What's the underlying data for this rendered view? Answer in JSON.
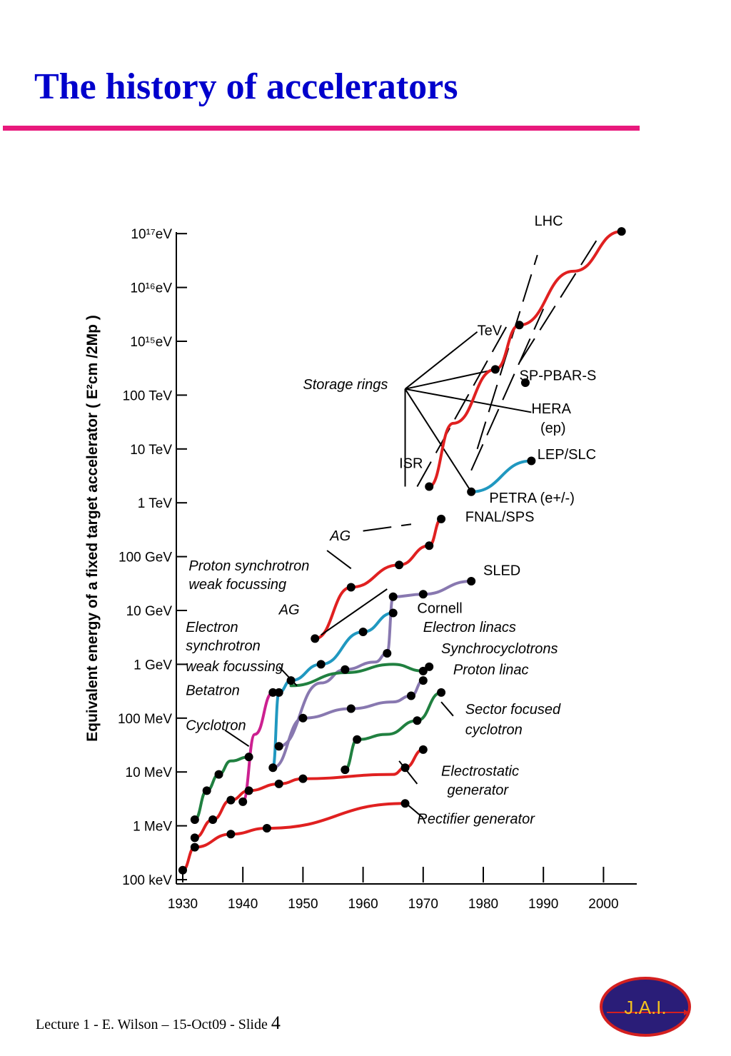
{
  "slide": {
    "title": "The history of accelerators",
    "footer_text": "Lecture 1 - E. Wilson – 15-Oct09 - Slide ",
    "slide_number": "4",
    "logo_text": "J.A.I.",
    "accent_color": "#e8197c",
    "title_color": "#0000cc"
  },
  "chart_data": {
    "type": "line",
    "title": "",
    "ylabel": "Equivalent energy of a fixed target accelerator ( E²cm /2Mp )",
    "xlabel": "",
    "x_ticks": [
      "1930",
      "1940",
      "1950",
      "1960",
      "1970",
      "1980",
      "1990",
      "2000"
    ],
    "xlim": [
      1930,
      2005
    ],
    "y_scale": "log",
    "y_ticks": [
      {
        "label": "100 keV",
        "value": 100000.0
      },
      {
        "label": "1 MeV",
        "value": 1000000.0
      },
      {
        "label": "10 MeV",
        "value": 10000000.0
      },
      {
        "label": "100 MeV",
        "value": 100000000.0
      },
      {
        "label": "1 GeV",
        "value": 1000000000.0
      },
      {
        "label": "10 GeV",
        "value": 10000000000.0
      },
      {
        "label": "100 GeV",
        "value": 100000000000.0
      },
      {
        "label": "1 TeV",
        "value": 1000000000000.0
      },
      {
        "label": "10 TeV",
        "value": 10000000000000.0
      },
      {
        "label": "100 TeV",
        "value": 100000000000000.0
      },
      {
        "label": "10¹⁵eV",
        "value": 1000000000000000.0
      },
      {
        "label": "10¹⁶eV",
        "value": 1e+16
      },
      {
        "label": "10¹⁷eV",
        "value": 1e+17
      }
    ],
    "ylim": [
      100000.0,
      2e+17
    ],
    "grid": false,
    "series": [
      {
        "name": "Rectifier generator",
        "color": "#e02020",
        "points": [
          [
            1930,
            150000.0
          ],
          [
            1932,
            400000.0
          ],
          [
            1938,
            700000.0
          ],
          [
            1944,
            900000.0
          ],
          [
            1967,
            2600000.0
          ]
        ]
      },
      {
        "name": "Electrostatic generator",
        "color": "#e02020",
        "points": [
          [
            1932,
            600000.0
          ],
          [
            1935,
            1300000.0
          ],
          [
            1938,
            3000000.0
          ],
          [
            1941,
            4500000.0
          ],
          [
            1946,
            6000000.0
          ],
          [
            1950,
            7500000.0
          ],
          [
            1965,
            9000000.0
          ],
          [
            1967,
            12000000.0
          ],
          [
            1970,
            26000000.0
          ]
        ]
      },
      {
        "name": "Cyclotron",
        "color": "#208040",
        "points": [
          [
            1932,
            1300000.0
          ],
          [
            1934,
            4500000.0
          ],
          [
            1936,
            9000000.0
          ],
          [
            1938,
            16000000.0
          ],
          [
            1941,
            19000000.0
          ]
        ]
      },
      {
        "name": "Betatron",
        "color": "#cc2090",
        "points": [
          [
            1940,
            2800000.0
          ],
          [
            1942,
            50000000.0
          ],
          [
            1945,
            300000000.0
          ]
        ]
      },
      {
        "name": "Electron synchrotron",
        "color": "#2098c0",
        "points": [
          [
            1945,
            12000000.0
          ],
          [
            1946,
            300000000.0
          ],
          [
            1948,
            500000000.0
          ],
          [
            1953,
            1000000000.0
          ],
          [
            1960,
            4000000000.0
          ],
          [
            1965,
            9000000000.0
          ]
        ]
      },
      {
        "name": "Electron linacs",
        "color": "#8878b0",
        "points": [
          [
            1945,
            12000000.0
          ],
          [
            1950,
            100000000.0
          ],
          [
            1958,
            150000000.0
          ],
          [
            1965,
            200000000.0
          ],
          [
            1968,
            260000000.0
          ],
          [
            1970,
            500000000.0
          ]
        ]
      },
      {
        "name": "Synchrocyclotrons",
        "color": "#8878b0",
        "points": [
          [
            1946,
            30000000.0
          ],
          [
            1953,
            450000000.0
          ],
          [
            1957,
            800000000.0
          ],
          [
            1962,
            1100000000.0
          ],
          [
            1964,
            1600000000.0
          ],
          [
            1965,
            18000000000.0
          ],
          [
            1970,
            20000000000.0
          ],
          [
            1978,
            35000000000.0
          ]
        ]
      },
      {
        "name": "Proton linac",
        "color": "#208040",
        "points": [
          [
            1948,
            400000000.0
          ],
          [
            1957,
            700000000.0
          ],
          [
            1965,
            1000000000.0
          ],
          [
            1970,
            750000000.0
          ],
          [
            1971,
            900000000.0
          ]
        ]
      },
      {
        "name": "Sector focused cyclotron",
        "color": "#208040",
        "points": [
          [
            1957,
            11000000.0
          ],
          [
            1959,
            40000000.0
          ],
          [
            1964,
            50000000.0
          ],
          [
            1969,
            90000000.0
          ],
          [
            1973,
            300000000.0
          ]
        ]
      },
      {
        "name": "Proton synchrotron",
        "color": "#e02020",
        "points": [
          [
            1952,
            3000000000.0
          ],
          [
            1958,
            27000000000.0
          ],
          [
            1966,
            70000000000.0
          ],
          [
            1971,
            160000000000.0
          ],
          [
            1973,
            500000000000.0
          ]
        ]
      },
      {
        "name": "ISR to LHC",
        "color": "#e02020",
        "points": [
          [
            1971,
            2000000000000.0
          ],
          [
            1975,
            30000000000000.0
          ],
          [
            1982,
            300000000000000.0
          ],
          [
            1986,
            2000000000000000.0
          ],
          [
            1995,
            2e+16
          ],
          [
            2003,
            1.1e+17
          ]
        ]
      },
      {
        "name": "PETRA to LEP/SLC",
        "color": "#2098c0",
        "points": [
          [
            1978,
            1600000000000.0
          ],
          [
            1988,
            6000000000000.0
          ]
        ]
      }
    ],
    "markers": [
      [
        1930,
        150000.0
      ],
      [
        1932,
        400000.0
      ],
      [
        1938,
        700000.0
      ],
      [
        1944,
        900000.0
      ],
      [
        1967,
        2600000.0
      ],
      [
        1932,
        600000.0
      ],
      [
        1935,
        1300000.0
      ],
      [
        1938,
        3000000.0
      ],
      [
        1941,
        4500000.0
      ],
      [
        1946,
        6000000.0
      ],
      [
        1950,
        7500000.0
      ],
      [
        1967,
        12000000.0
      ],
      [
        1970,
        26000000.0
      ],
      [
        1932,
        1300000.0
      ],
      [
        1934,
        4500000.0
      ],
      [
        1936,
        9000000.0
      ],
      [
        1941,
        19000000.0
      ],
      [
        1940,
        2800000.0
      ],
      [
        1945,
        300000000.0
      ],
      [
        1945,
        12000000.0
      ],
      [
        1946,
        300000000.0
      ],
      [
        1948,
        500000000.0
      ],
      [
        1953,
        1000000000.0
      ],
      [
        1960,
        4000000000.0
      ],
      [
        1965,
        9000000000.0
      ],
      [
        1950,
        100000000.0
      ],
      [
        1958,
        150000000.0
      ],
      [
        1968,
        260000000.0
      ],
      [
        1970,
        500000000.0
      ],
      [
        1946,
        30000000.0
      ],
      [
        1957,
        800000000.0
      ],
      [
        1964,
        1600000000.0
      ],
      [
        1965,
        18000000000.0
      ],
      [
        1970,
        20000000000.0
      ],
      [
        1978,
        35000000000.0
      ],
      [
        1970,
        750000000.0
      ],
      [
        1971,
        900000000.0
      ],
      [
        1957,
        11000000.0
      ],
      [
        1959,
        40000000.0
      ],
      [
        1969,
        90000000.0
      ],
      [
        1973,
        300000000.0
      ],
      [
        1952,
        3000000000.0
      ],
      [
        1958,
        27000000000.0
      ],
      [
        1966,
        70000000000.0
      ],
      [
        1971,
        160000000000.0
      ],
      [
        1973,
        500000000000.0
      ],
      [
        1971,
        2000000000000.0
      ],
      [
        1982,
        300000000000000.0
      ],
      [
        1986,
        2000000000000000.0
      ],
      [
        2003,
        1.1e+17
      ],
      [
        1987,
        170000000000000.0
      ],
      [
        1978,
        1600000000000.0
      ],
      [
        1988,
        6000000000000.0
      ]
    ],
    "annotations": [
      {
        "text": "LHC",
        "x": 1988.5,
        "y": 1.4e+17,
        "italic": false
      },
      {
        "text": "TeV",
        "x": 1979,
        "y": 1300000000000000.0,
        "italic": false
      },
      {
        "text": "SP-PBAR-S",
        "x": 1986,
        "y": 190000000000000.0,
        "italic": false
      },
      {
        "text": "Storage rings",
        "x": 1950,
        "y": 130000000000000.0,
        "italic": true
      },
      {
        "text": "HERA",
        "x": 1988,
        "y": 46000000000000.0,
        "italic": false
      },
      {
        "text": "(ep)",
        "x": 1989.5,
        "y": 20000000000000.0,
        "italic": false
      },
      {
        "text": "LEP/SLC",
        "x": 1989,
        "y": 6500000000000.0,
        "italic": false
      },
      {
        "text": "ISR",
        "x": 1966,
        "y": 4400000000000.0,
        "italic": false
      },
      {
        "text": "PETRA (e+/-)",
        "x": 1981,
        "y": 1000000000000.0,
        "italic": false
      },
      {
        "text": "FNAL/SPS",
        "x": 1977,
        "y": 450000000000.0,
        "italic": false
      },
      {
        "text": "AG",
        "x": 1954.5,
        "y": 200000000000.0,
        "italic": true
      },
      {
        "text": "Proton synchrotron",
        "x": 1931,
        "y": 55000000000.0,
        "italic": true
      },
      {
        "text": "weak focussing",
        "x": 1931,
        "y": 25000000000.0,
        "italic": true
      },
      {
        "text": "SLED",
        "x": 1980,
        "y": 45000000000.0,
        "italic": false
      },
      {
        "text": "AG",
        "x": 1946,
        "y": 8500000000.0,
        "italic": true
      },
      {
        "text": "Cornell",
        "x": 1969,
        "y": 9000000000.0,
        "italic": false
      },
      {
        "text": "Electron",
        "x": 1930.5,
        "y": 4000000000.0,
        "italic": true
      },
      {
        "text": "Electron linacs",
        "x": 1970,
        "y": 4000000000.0,
        "italic": true
      },
      {
        "text": "synchrotron",
        "x": 1930.5,
        "y": 1800000000.0,
        "italic": true
      },
      {
        "text": "Synchrocyclotrons",
        "x": 1973,
        "y": 1600000000.0,
        "italic": true
      },
      {
        "text": "weak focussing",
        "x": 1930.5,
        "y": 750000000.0,
        "italic": true
      },
      {
        "text": "Proton linac",
        "x": 1975,
        "y": 650000000.0,
        "italic": true
      },
      {
        "text": "Betatron",
        "x": 1930.5,
        "y": 270000000.0,
        "italic": true
      },
      {
        "text": "Sector focused",
        "x": 1977,
        "y": 120000000.0,
        "italic": true
      },
      {
        "text": "Cyclotron",
        "x": 1930.5,
        "y": 60000000.0,
        "italic": true
      },
      {
        "text": "cyclotron",
        "x": 1977,
        "y": 50000000.0,
        "italic": true
      },
      {
        "text": "Electrostatic",
        "x": 1973,
        "y": 8500000.0,
        "italic": true
      },
      {
        "text": "generator",
        "x": 1974,
        "y": 3800000.0,
        "italic": true
      },
      {
        "text": "Rectifier generator",
        "x": 1969,
        "y": 1100000.0,
        "italic": true
      }
    ]
  }
}
